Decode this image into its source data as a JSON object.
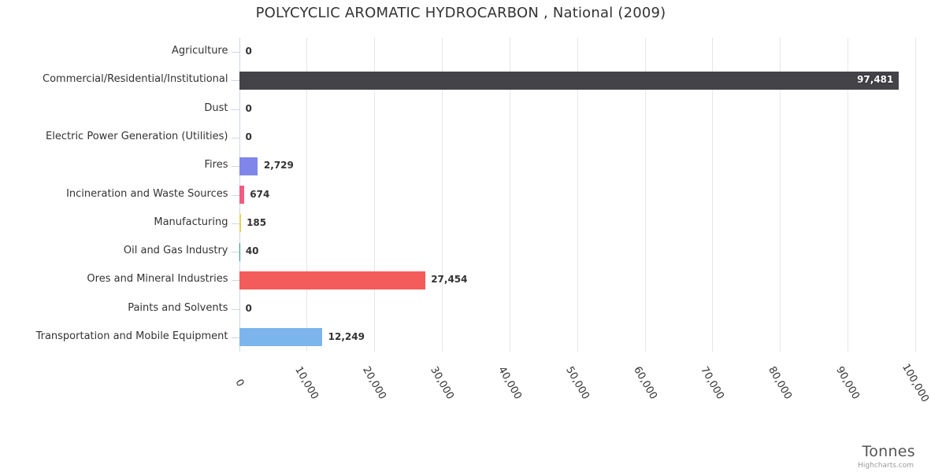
{
  "credits": "Highcharts.com",
  "chart_data": {
    "type": "bar",
    "orientation": "horizontal",
    "title": "POLYCYCLIC AROMATIC HYDROCARBON , National (2009)",
    "categories": [
      "Agriculture",
      "Commercial/Residential/Institutional",
      "Dust",
      "Electric Power Generation (Utilities)",
      "Fires",
      "Incineration and Waste Sources",
      "Manufacturing",
      "Oil and Gas Industry",
      "Ores and Mineral Industries",
      "Paints and Solvents",
      "Transportation and Mobile Equipment"
    ],
    "values": [
      0,
      97481,
      0,
      0,
      2729,
      674,
      185,
      40,
      27454,
      0,
      12249
    ],
    "value_labels": [
      "0",
      "97,481",
      "0",
      "0",
      "2,729",
      "674",
      "185",
      "40",
      "27,454",
      "0",
      "12,249"
    ],
    "bar_colors": [
      "#7cb5ec",
      "#434348",
      "#90ed7d",
      "#f7a35c",
      "#8085e9",
      "#f15c80",
      "#e4d354",
      "#2b908f",
      "#f45b5b",
      "#91e8e1",
      "#7cb5ec"
    ],
    "xlabel": "Tonnes",
    "ylabel": "",
    "xlim": [
      0,
      100000
    ],
    "x_ticks": [
      0,
      10000,
      20000,
      30000,
      40000,
      50000,
      60000,
      70000,
      80000,
      90000,
      100000
    ],
    "x_tick_labels": [
      "0",
      "10,000",
      "20,000",
      "30,000",
      "40,000",
      "50,000",
      "60,000",
      "70,000",
      "80,000",
      "90,000",
      "100,000"
    ],
    "grid": true,
    "legend": "none",
    "colors": {
      "title": "#333333",
      "labels": "#333333",
      "axis_line": "#ccd6eb",
      "gridline": "#e6e6e6",
      "datalabel": "#333333",
      "datalabel_inside": "#ffffff",
      "axis_title": "#555555",
      "credits": "#999999"
    }
  }
}
